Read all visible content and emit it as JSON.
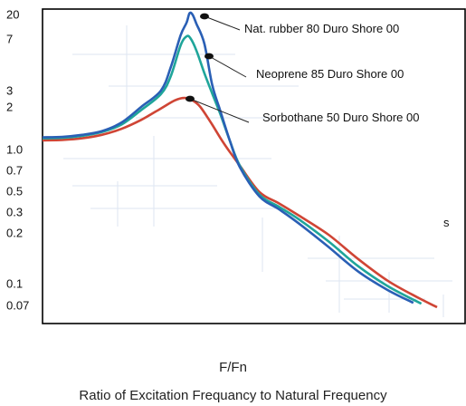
{
  "chart_data": {
    "type": "line",
    "xlabel": "F/Fn",
    "subtitle": "Ratio of Excitation Frequancy to Natural Frequency",
    "ylabel": "",
    "y_scale": "log",
    "y_ticks": [
      "20",
      "7",
      "3",
      "2",
      "1.0",
      "0.7",
      "0.5",
      "0.3",
      "0.2",
      "0.1",
      "0.07"
    ],
    "series": [
      {
        "name": "Nat. rubber 80 Duro Shore 00",
        "color": "#2a5fb5",
        "points": [
          [
            0.0,
            1.22
          ],
          [
            0.1,
            1.23
          ],
          [
            0.2,
            1.27
          ],
          [
            0.3,
            1.35
          ],
          [
            0.4,
            1.55
          ],
          [
            0.5,
            2.0
          ],
          [
            0.6,
            3.0
          ],
          [
            0.65,
            4.4
          ],
          [
            0.7,
            8.2
          ],
          [
            0.73,
            14.0
          ],
          [
            0.745,
            21.0
          ],
          [
            0.76,
            20.0
          ],
          [
            0.78,
            13.5
          ],
          [
            0.82,
            6.5
          ],
          [
            0.86,
            3.3
          ],
          [
            0.9,
            1.9
          ],
          [
            0.95,
            1.15
          ],
          [
            1.0,
            0.74
          ],
          [
            1.1,
            0.44
          ],
          [
            1.2,
            0.32
          ],
          [
            1.3,
            0.24
          ],
          [
            1.45,
            0.165
          ],
          [
            1.6,
            0.118
          ],
          [
            1.75,
            0.09
          ],
          [
            1.88,
            0.073
          ]
        ]
      },
      {
        "name": "Neoprene 85 Duro Shore 00",
        "color": "#1fa59a",
        "points": [
          [
            0.0,
            1.2
          ],
          [
            0.1,
            1.21
          ],
          [
            0.2,
            1.25
          ],
          [
            0.3,
            1.33
          ],
          [
            0.4,
            1.5
          ],
          [
            0.5,
            1.9
          ],
          [
            0.6,
            2.75
          ],
          [
            0.65,
            3.8
          ],
          [
            0.7,
            6.3
          ],
          [
            0.73,
            7.8
          ],
          [
            0.75,
            7.2
          ],
          [
            0.78,
            5.8
          ],
          [
            0.82,
            4.0
          ],
          [
            0.86,
            2.8
          ],
          [
            0.9,
            1.8
          ],
          [
            0.95,
            1.15
          ],
          [
            1.0,
            0.76
          ],
          [
            1.1,
            0.46
          ],
          [
            1.2,
            0.34
          ],
          [
            1.3,
            0.26
          ],
          [
            1.45,
            0.178
          ],
          [
            1.6,
            0.127
          ],
          [
            1.75,
            0.096
          ],
          [
            1.92,
            0.072
          ]
        ]
      },
      {
        "name": "Sorbothane 50 Duro Shore 00",
        "color": "#cf4535",
        "points": [
          [
            0.0,
            1.16
          ],
          [
            0.1,
            1.17
          ],
          [
            0.2,
            1.2
          ],
          [
            0.3,
            1.27
          ],
          [
            0.4,
            1.4
          ],
          [
            0.5,
            1.62
          ],
          [
            0.6,
            1.95
          ],
          [
            0.67,
            2.35
          ],
          [
            0.72,
            2.5
          ],
          [
            0.76,
            2.35
          ],
          [
            0.8,
            2.0
          ],
          [
            0.86,
            1.5
          ],
          [
            0.92,
            1.1
          ],
          [
            1.0,
            0.76
          ],
          [
            1.1,
            0.49
          ],
          [
            1.2,
            0.37
          ],
          [
            1.3,
            0.28
          ],
          [
            1.45,
            0.195
          ],
          [
            1.6,
            0.14
          ],
          [
            1.75,
            0.104
          ],
          [
            1.9,
            0.08
          ],
          [
            2.0,
            0.068
          ]
        ]
      }
    ],
    "annotations": [
      {
        "text": "Nat. rubber 80 Duro Shore 00",
        "series": 0
      },
      {
        "text": "Neoprene 85 Duro Shore 00",
        "series": 1
      },
      {
        "text": "Sorbothane 50 Duro Shore 00",
        "series": 2
      }
    ],
    "stray_mark": "s",
    "grid": false,
    "legend": "none"
  }
}
